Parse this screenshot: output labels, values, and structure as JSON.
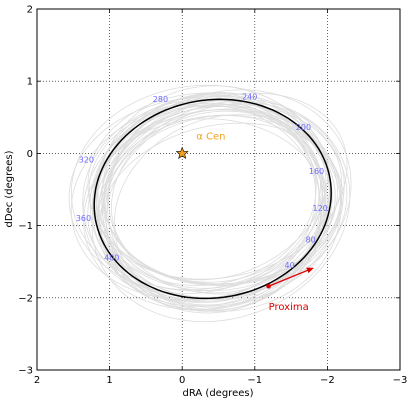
{
  "chart_data": {
    "type": "line",
    "title": "",
    "xlabel": "dRA (degrees)",
    "ylabel": "dDec (degrees)",
    "xlim": [
      2,
      -3
    ],
    "ylim": [
      -3,
      2
    ],
    "x_ticks": [
      2,
      1,
      0,
      -1,
      -2,
      -3
    ],
    "x_tick_labels": [
      "2",
      "1",
      "0",
      "−1",
      "−2",
      "−3"
    ],
    "y_ticks": [
      2,
      1,
      0,
      -1,
      -2,
      -3
    ],
    "y_tick_labels": [
      "2",
      "1",
      "0",
      "−1",
      "−2",
      "−3"
    ],
    "grid": true,
    "grid_style": "dotted",
    "best_orbit": {
      "color": "#000000",
      "center": [
        -0.42,
        -0.63
      ],
      "semi_axes": [
        1.64,
        1.37
      ],
      "rotation_deg": -10
    },
    "sample_orbits": {
      "color": "#dddddd",
      "count": 36
    },
    "alpha_cen": {
      "x": 0.0,
      "y": 0.0,
      "label": "α Cen",
      "color": "#f0a020"
    },
    "proxima": {
      "x": -1.19,
      "y": -1.84,
      "label": "Proxima",
      "color": "#dd0000",
      "arrow_to": [
        -1.8,
        -1.59
      ]
    },
    "orbit_time_labels": [
      {
        "text": "40",
        "x": -1.48,
        "y": -1.55
      },
      {
        "text": "80",
        "x": -1.77,
        "y": -1.2
      },
      {
        "text": "120",
        "x": -1.9,
        "y": -0.76
      },
      {
        "text": "160",
        "x": -1.85,
        "y": -0.25
      },
      {
        "text": "200",
        "x": -1.67,
        "y": 0.36
      },
      {
        "text": "240",
        "x": -0.93,
        "y": 0.78
      },
      {
        "text": "280",
        "x": 0.3,
        "y": 0.75
      },
      {
        "text": "320",
        "x": 1.32,
        "y": -0.09
      },
      {
        "text": "360",
        "x": 1.36,
        "y": -0.9
      },
      {
        "text": "400",
        "x": 0.97,
        "y": -1.45
      }
    ],
    "orbit_label_color": "#6b6bff"
  }
}
